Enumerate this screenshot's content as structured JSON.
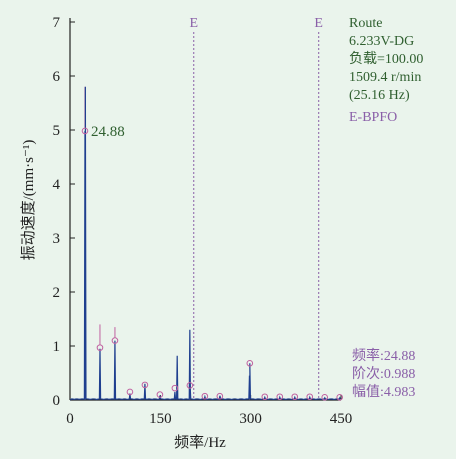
{
  "chart_data": {
    "type": "line",
    "ylabel": "振动速度/(mm·s⁻¹)",
    "xlabel": "频率/Hz",
    "xlim": [
      0,
      450
    ],
    "ylim": [
      0,
      7
    ],
    "x_ticks": [
      "0",
      "150",
      "300",
      "450"
    ],
    "y_ticks": [
      "0",
      "1",
      "2",
      "3",
      "4",
      "5",
      "6",
      "7"
    ],
    "grid": false,
    "series_color": "#1f3f8f",
    "harmonic_color": "#c060a0",
    "spectrum_peaks": [
      {
        "x": 24.88,
        "y": 4.983
      },
      {
        "x": 25.5,
        "y": 5.8
      },
      {
        "x": 49.8,
        "y": 0.95
      },
      {
        "x": 74.6,
        "y": 1.1
      },
      {
        "x": 99.5,
        "y": 0.12
      },
      {
        "x": 124.4,
        "y": 0.3
      },
      {
        "x": 149.3,
        "y": 0.08
      },
      {
        "x": 174.2,
        "y": 0.15
      },
      {
        "x": 178.0,
        "y": 0.82
      },
      {
        "x": 199.0,
        "y": 1.3
      },
      {
        "x": 199.5,
        "y": 0.25
      },
      {
        "x": 224.0,
        "y": 0.06
      },
      {
        "x": 249.0,
        "y": 0.08
      },
      {
        "x": 298.6,
        "y": 0.68
      },
      {
        "x": 298.0,
        "y": 0.45
      },
      {
        "x": 323.5,
        "y": 0.05
      },
      {
        "x": 348.4,
        "y": 0.05
      },
      {
        "x": 373.3,
        "y": 0.05
      },
      {
        "x": 398.2,
        "y": 0.05
      },
      {
        "x": 423.1,
        "y": 0.04
      },
      {
        "x": 448.0,
        "y": 0.04
      }
    ],
    "harmonic_markers": [
      {
        "x": 24.88,
        "y": 4.983,
        "line_top": 5.8
      },
      {
        "x": 49.76,
        "y": 0.97,
        "line_top": 1.4
      },
      {
        "x": 74.64,
        "y": 1.1,
        "line_top": 1.35
      },
      {
        "x": 99.52,
        "y": 0.15
      },
      {
        "x": 124.4,
        "y": 0.28
      },
      {
        "x": 149.28,
        "y": 0.1
      },
      {
        "x": 174.16,
        "y": 0.22
      },
      {
        "x": 199.04,
        "y": 0.27
      },
      {
        "x": 223.92,
        "y": 0.07
      },
      {
        "x": 248.8,
        "y": 0.07
      },
      {
        "x": 298.56,
        "y": 0.68
      },
      {
        "x": 323.44,
        "y": 0.06
      },
      {
        "x": 348.32,
        "y": 0.06
      },
      {
        "x": 373.2,
        "y": 0.06
      },
      {
        "x": 398.08,
        "y": 0.06
      },
      {
        "x": 422.96,
        "y": 0.05
      },
      {
        "x": 447.84,
        "y": 0.05
      }
    ],
    "bpfo_lines": [
      205.5,
      413.0
    ],
    "bpfo_label": "E",
    "peak_annotation": "24.88"
  },
  "info": {
    "route": "Route",
    "point": "6.233V-DG",
    "load": "负载=100.00",
    "speed": "1509.4 r/min",
    "speed_hz": "(25.16 Hz)",
    "fault": "E-BPFO"
  },
  "readout": {
    "freq": "频率:24.88",
    "order": "阶次:0.988",
    "amplitude": "幅值:4.983"
  }
}
